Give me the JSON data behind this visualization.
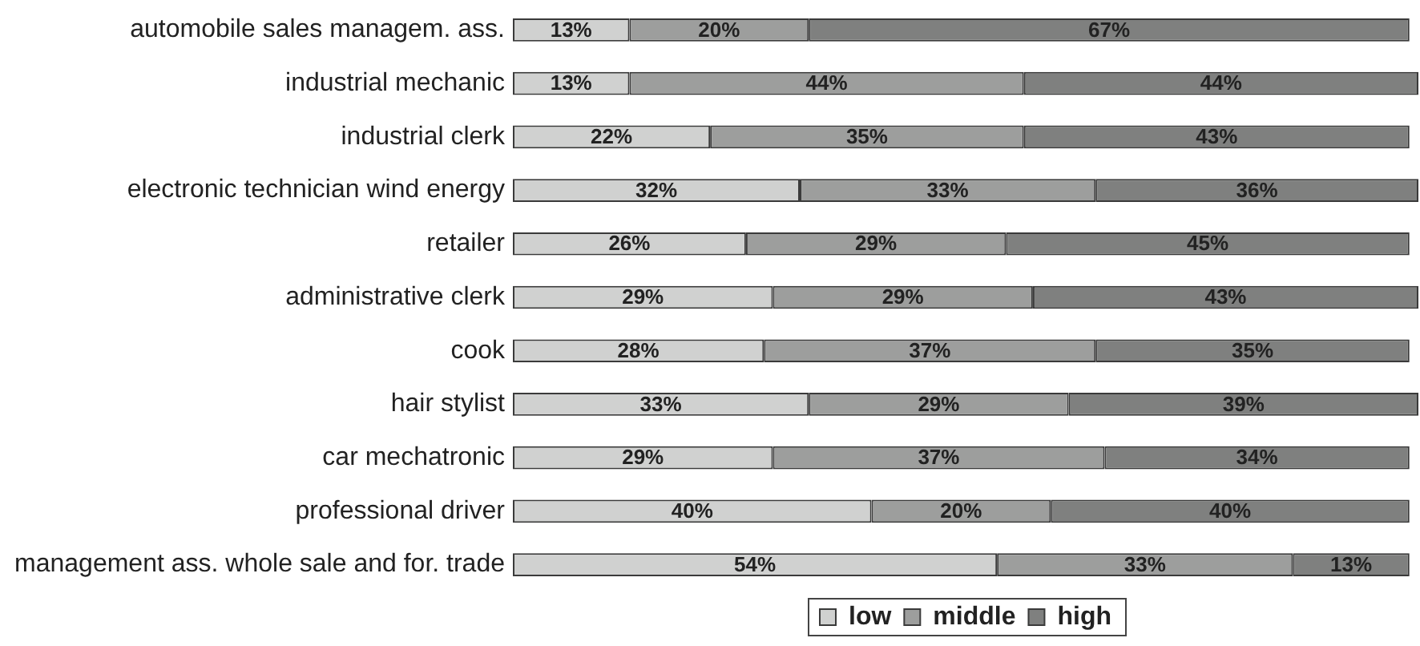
{
  "chart_data": {
    "type": "bar",
    "orientation": "horizontal",
    "stacked": true,
    "legend": "bottom",
    "categories": [
      "automobile sales managem. ass.",
      "industrial mechanic",
      "industrial clerk",
      "electronic technician wind energy",
      "retailer",
      "administrative clerk",
      "cook",
      "hair stylist",
      "car mechatronic",
      "professional driver",
      "management ass. whole sale and for. trade"
    ],
    "series": [
      {
        "name": "low",
        "color": "#d0d1d0",
        "values": [
          13,
          13,
          22,
          32,
          26,
          29,
          28,
          33,
          29,
          40,
          54
        ],
        "value_labels": [
          "13%",
          "13%",
          "22%",
          "32%",
          "26%",
          "29%",
          "28%",
          "33%",
          "29%",
          "40%",
          "54%"
        ]
      },
      {
        "name": "middle",
        "color": "#9d9e9d",
        "values": [
          20,
          44,
          35,
          33,
          29,
          29,
          37,
          29,
          37,
          20,
          33
        ],
        "value_labels": [
          "20%",
          "44%",
          "35%",
          "33%",
          "29%",
          "29%",
          "37%",
          "29%",
          "37%",
          "20%",
          "33%"
        ]
      },
      {
        "name": "high",
        "color": "#7f807f",
        "values": [
          67,
          44,
          43,
          36,
          45,
          43,
          35,
          39,
          34,
          40,
          13
        ],
        "value_labels": [
          "67%",
          "44%",
          "43%",
          "36%",
          "45%",
          "43%",
          "35%",
          "39%",
          "34%",
          "40%",
          "13%"
        ]
      }
    ]
  }
}
